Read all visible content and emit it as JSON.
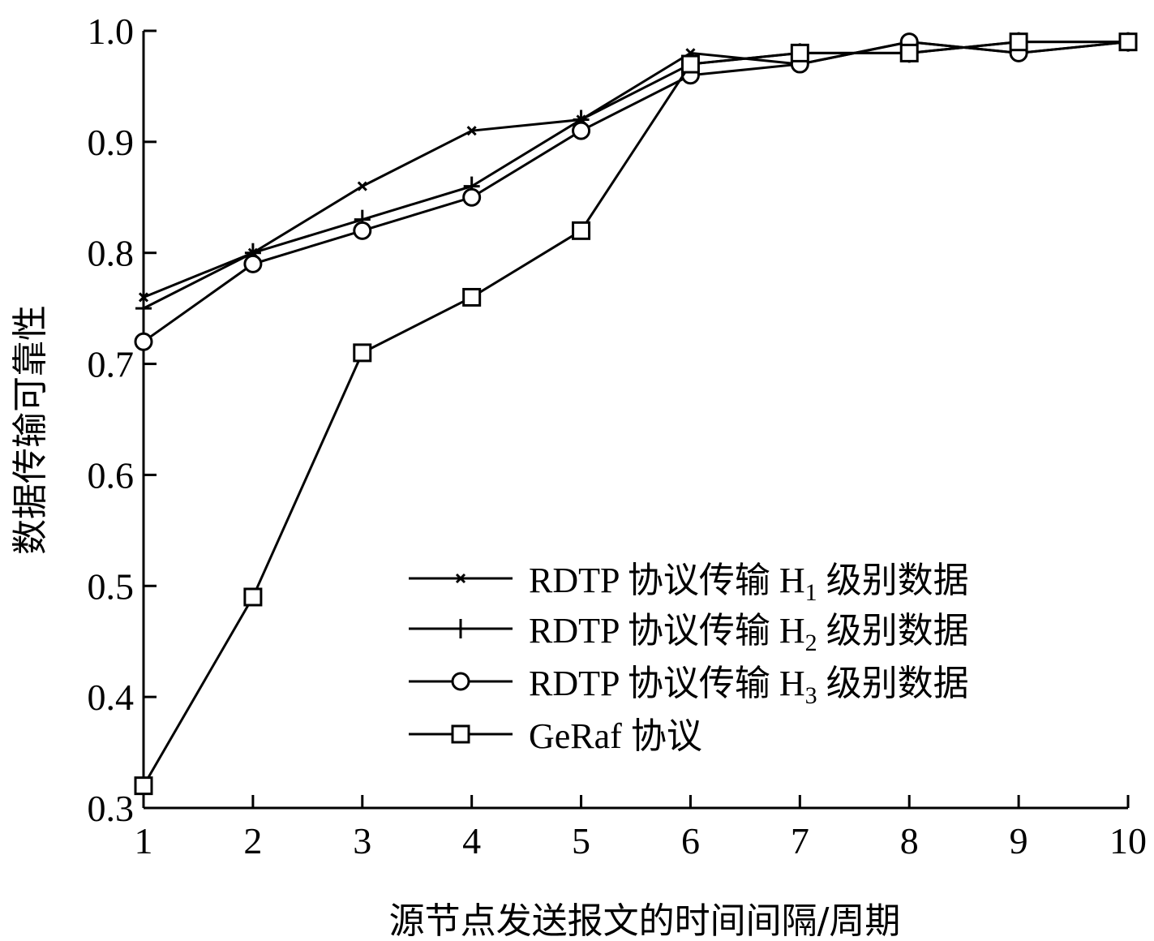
{
  "chart_data": {
    "type": "line",
    "xlabel": "源节点发送报文的时间间隔/周期",
    "ylabel": "数据传输可靠性",
    "x": [
      1,
      2,
      3,
      4,
      5,
      6,
      7,
      8,
      9,
      10
    ],
    "xlim": [
      1,
      10
    ],
    "ylim": [
      0.3,
      1.0
    ],
    "xticks": [
      "1",
      "2",
      "3",
      "4",
      "5",
      "6",
      "7",
      "8",
      "9",
      "10"
    ],
    "yticks": [
      "0.3",
      "0.4",
      "0.5",
      "0.6",
      "0.7",
      "0.8",
      "0.9",
      "1.0"
    ],
    "grid": false,
    "legend_position": "bottom-right",
    "series": [
      {
        "name": "RDTP 协议传输 H1 级别数据",
        "label_prefix": "RDTP 协议传输 H",
        "label_sub": "1",
        "label_suffix": " 级别数据",
        "marker": "x",
        "values": [
          0.76,
          0.8,
          0.86,
          0.91,
          0.92,
          0.98,
          0.97,
          0.99,
          0.98,
          0.99
        ]
      },
      {
        "name": "RDTP 协议传输 H2 级别数据",
        "label_prefix": "RDTP 协议传输 H",
        "label_sub": "2",
        "label_suffix": " 级别数据",
        "marker": "plus",
        "values": [
          0.75,
          0.8,
          0.83,
          0.86,
          0.92,
          0.97,
          0.98,
          0.98,
          0.99,
          0.99
        ]
      },
      {
        "name": "RDTP 协议传输 H3 级别数据",
        "label_prefix": "RDTP 协议传输 H",
        "label_sub": "3",
        "label_suffix": " 级别数据",
        "marker": "circle",
        "values": [
          0.72,
          0.79,
          0.82,
          0.85,
          0.91,
          0.96,
          0.97,
          0.99,
          0.98,
          0.99
        ]
      },
      {
        "name": "GeRaf 协议",
        "label_prefix": "GeRaf 协议",
        "label_sub": "",
        "label_suffix": "",
        "marker": "square",
        "values": [
          0.32,
          0.49,
          0.71,
          0.76,
          0.82,
          0.97,
          0.98,
          0.98,
          0.99,
          0.99
        ]
      }
    ]
  }
}
